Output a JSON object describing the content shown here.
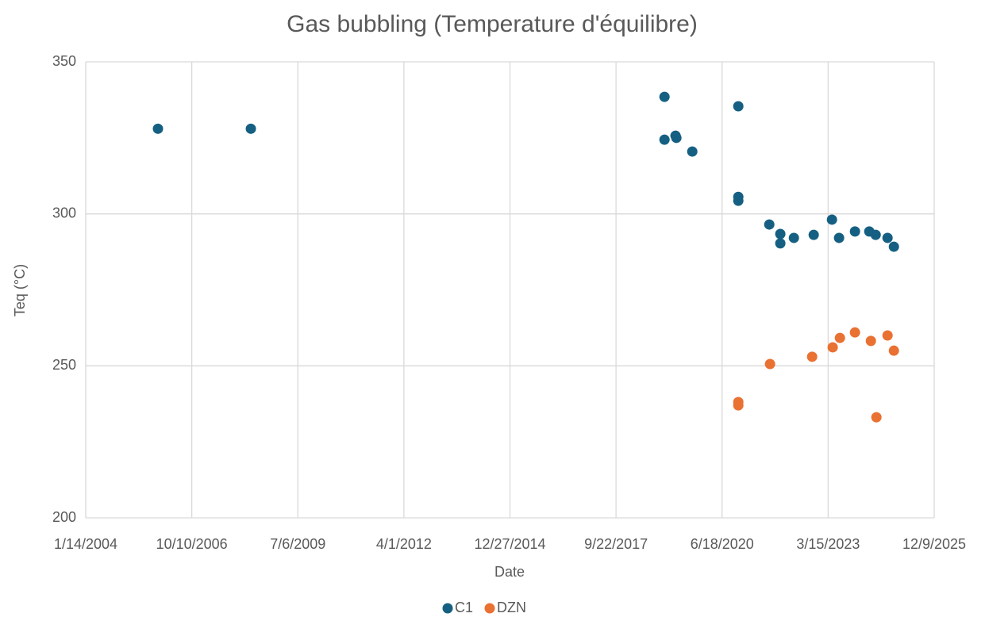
{
  "chart_data": {
    "type": "scatter",
    "title": "Gas bubbling (Temperature d'équilibre)",
    "x_label": "Date",
    "y_label": "Teq (°C)",
    "xlim": [
      38000,
      46000
    ],
    "xticks": [
      {
        "value": 38000,
        "label": "1/14/2004"
      },
      {
        "value": 39000,
        "label": "10/10/2006"
      },
      {
        "value": 40000,
        "label": "7/6/2009"
      },
      {
        "value": 41000,
        "label": "4/1/2012"
      },
      {
        "value": 42000,
        "label": "12/27/2014"
      },
      {
        "value": 43000,
        "label": "9/22/2017"
      },
      {
        "value": 44000,
        "label": "6/18/2020"
      },
      {
        "value": 45000,
        "label": "3/15/2023"
      },
      {
        "value": 46000,
        "label": "12/9/2025"
      }
    ],
    "ylim": [
      200,
      350
    ],
    "yticks": [
      200,
      250,
      300,
      350
    ],
    "grid": true,
    "legend": "bottom",
    "series": [
      {
        "name": "C1",
        "color": "#156082",
        "x": [
          38681,
          39557,
          43457,
          43457,
          43561,
          43569,
          43719,
          44153,
          44153,
          44153,
          44445,
          44549,
          44549,
          44677,
          44864,
          45036,
          45103,
          45253,
          45388,
          45448,
          45560,
          45620
        ],
        "values": [
          328,
          328,
          338.5,
          324.4,
          325.7,
          325,
          320.5,
          335.4,
          305.6,
          304.3,
          296.5,
          293.4,
          290.3,
          292.1,
          293.1,
          298.1,
          292.1,
          294.2,
          294.2,
          293.1,
          292.1,
          289.2
        ]
      },
      {
        "name": "DZN",
        "color": "#e97132",
        "x": [
          44153,
          44153,
          44452,
          44849,
          45043,
          45111,
          45253,
          45403,
          45455,
          45560,
          45620
        ],
        "values": [
          238.1,
          237,
          250.6,
          253,
          256.1,
          259.2,
          261,
          258.2,
          233.1,
          260,
          255
        ]
      }
    ]
  }
}
